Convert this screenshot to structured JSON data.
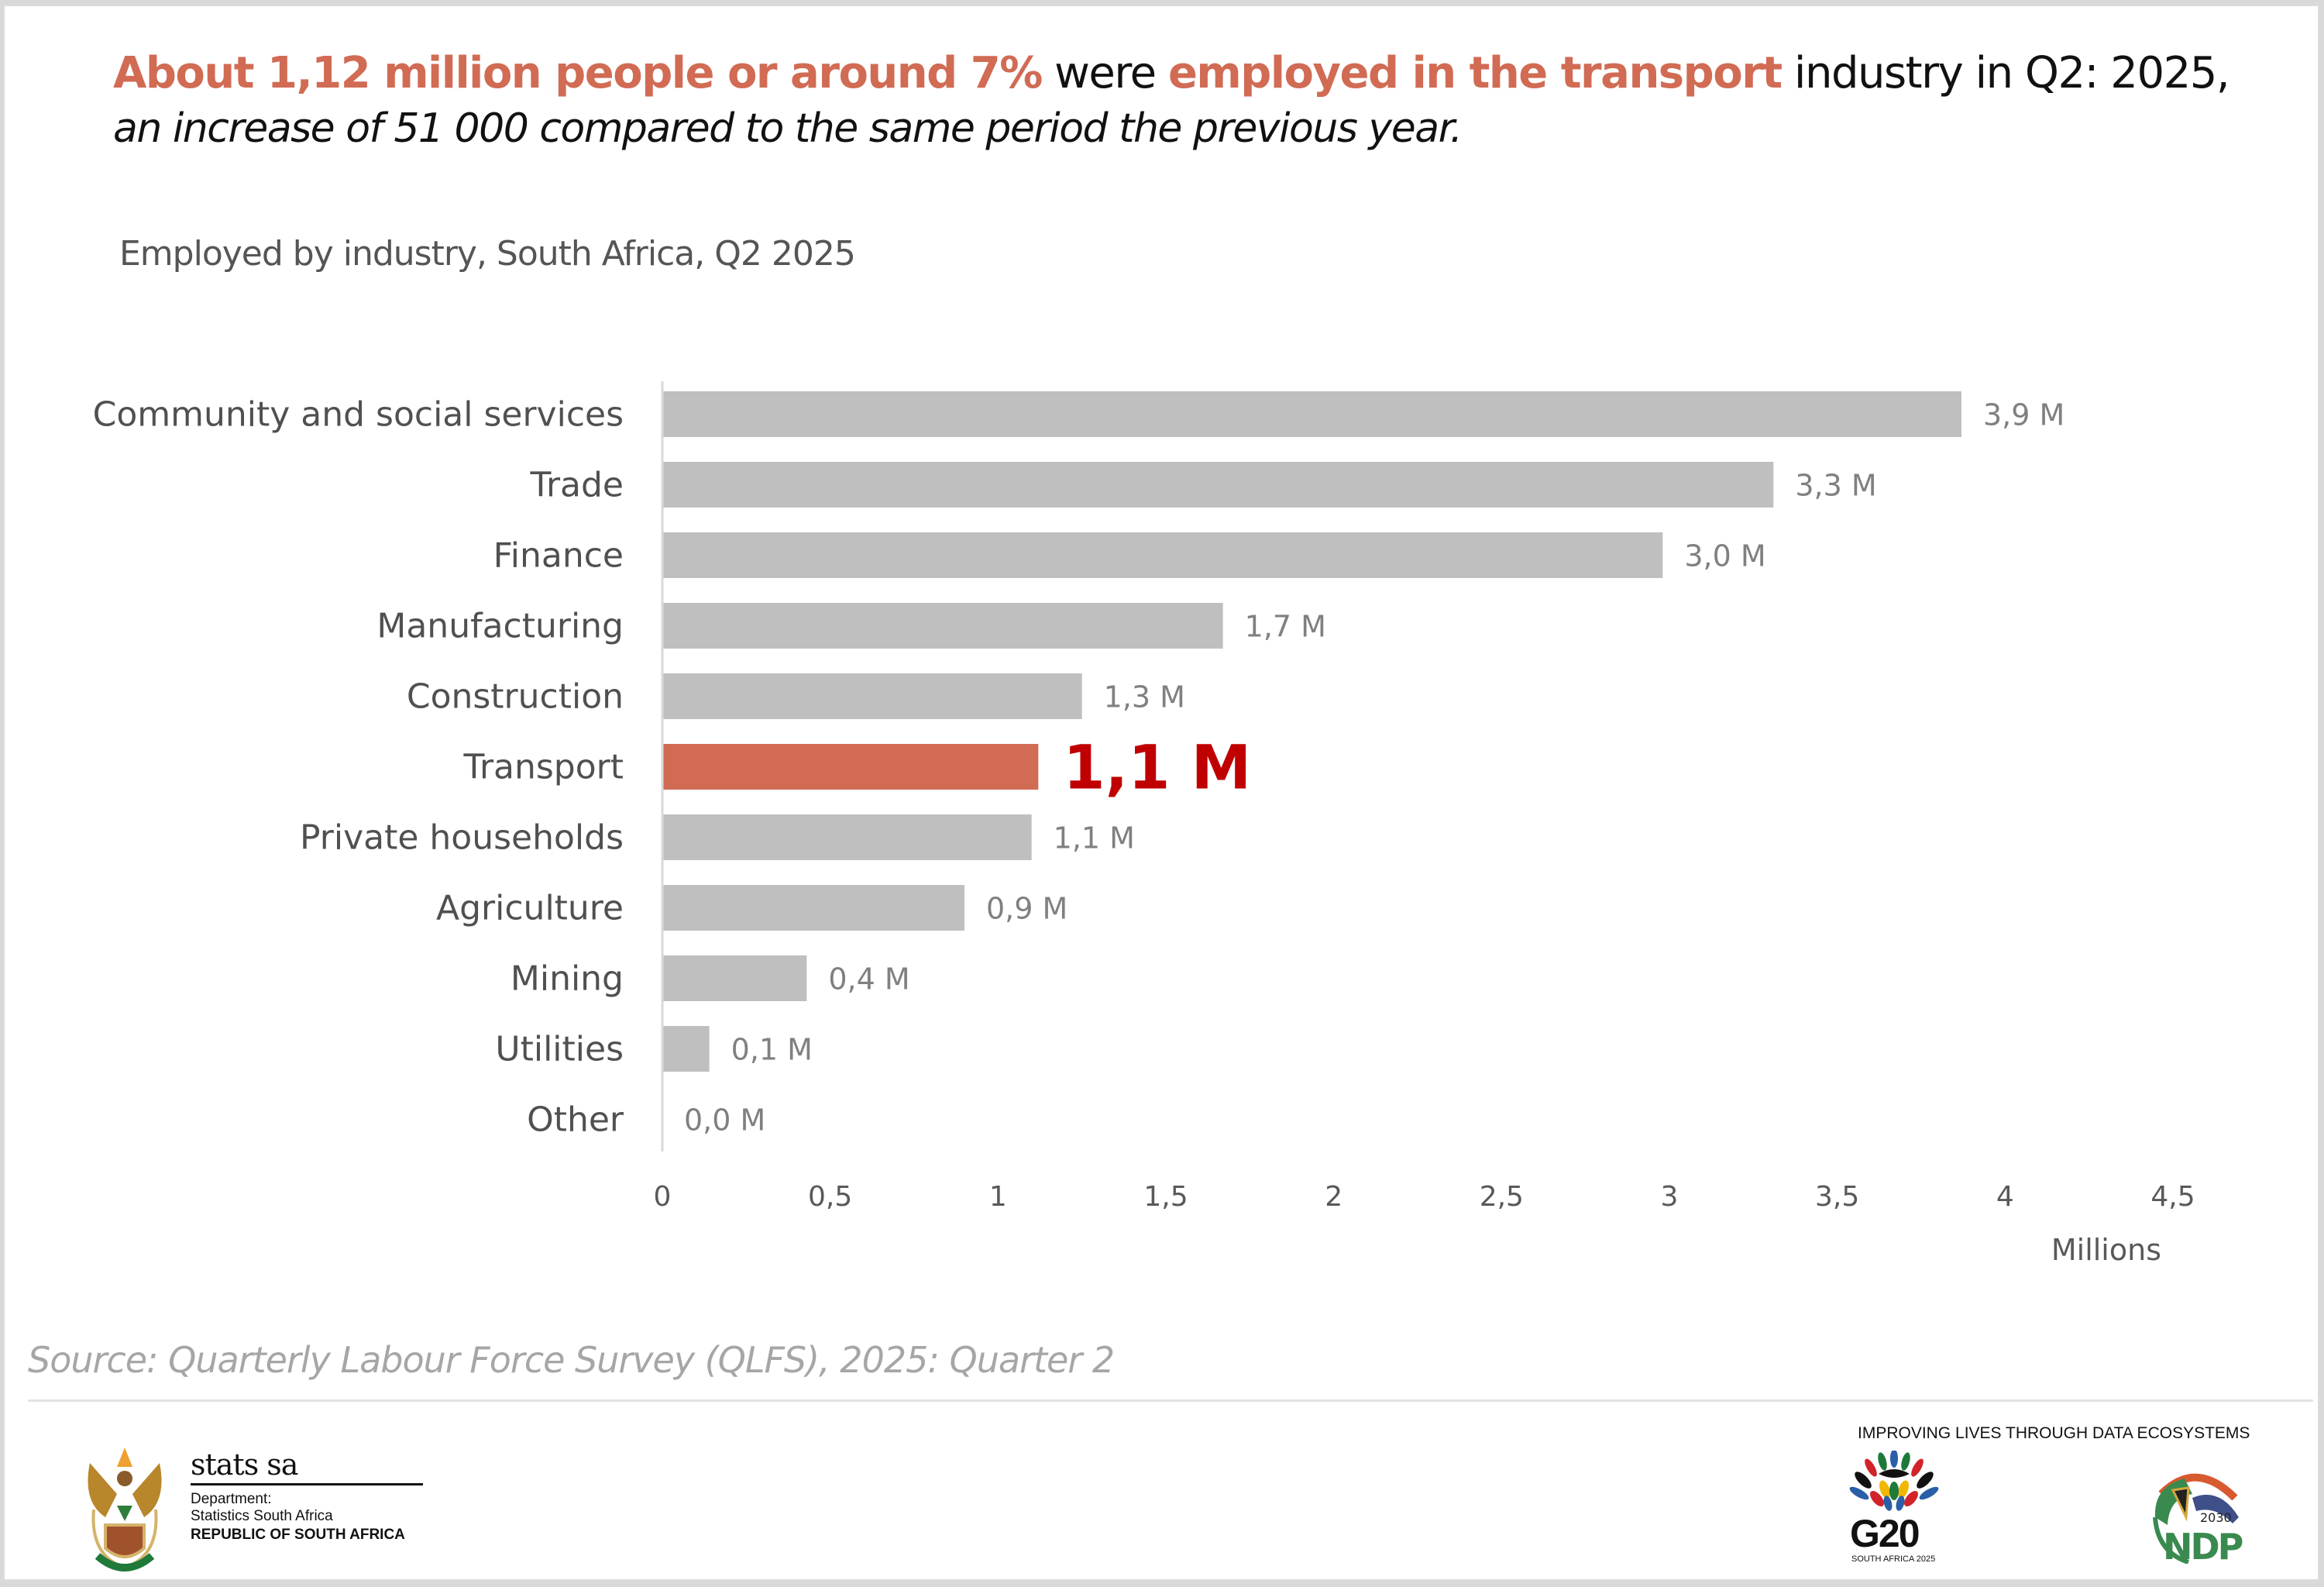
{
  "headline": {
    "part1_highlight": "About 1,12 million people  or around 7%",
    "part2": " were ",
    "part3_highlight": "employed in the transport",
    "part4": " industry in Q2: 2025,",
    "line2": "an increase of 51 000 compared to the same period the previous year."
  },
  "subtitle": "Employed by industry, South Africa, Q2 2025",
  "colors": {
    "accent": "#d16b54",
    "highlight_label": "#c00000",
    "bar_default": "#bfbfbf",
    "axis": "#d9d9d9"
  },
  "chart_data": {
    "type": "bar",
    "orientation": "horizontal",
    "title": "Employed by industry, South Africa, Q2 2025",
    "xlabel": "Millions",
    "ylabel": "",
    "categories": [
      "Community and social services",
      "Trade",
      "Finance",
      "Manufacturing",
      "Construction",
      "Transport",
      "Private households",
      "Agriculture",
      "Mining",
      "Utilities",
      "Other"
    ],
    "values": [
      3.87,
      3.31,
      2.98,
      1.67,
      1.25,
      1.12,
      1.1,
      0.9,
      0.43,
      0.14,
      0.0
    ],
    "data_labels": [
      "3,9 M",
      "3,3 M",
      "3,0 M",
      "1,7 M",
      "1,3 M",
      "1,1 M",
      "1,1 M",
      "0,9 M",
      "0,4 M",
      "0,1 M",
      "0,0 M"
    ],
    "highlight_category": "Transport",
    "xlim": [
      0,
      4.5
    ],
    "xticks": [
      0,
      0.5,
      1,
      1.5,
      2,
      2.5,
      3,
      3.5,
      4,
      4.5
    ],
    "xtick_labels": [
      "0",
      "0,5",
      "1",
      "1,5",
      "2",
      "2,5",
      "3",
      "3,5",
      "4",
      "4,5"
    ],
    "grid": false,
    "legend": "none"
  },
  "source": "Source: Quarterly Labour Force Survey (QLFS), 2025: Quarter 2",
  "footer": {
    "statssa": {
      "name": "stats sa",
      "dept_line1": "Department:",
      "dept_line2": "Statistics South Africa",
      "country": "REPUBLIC OF SOUTH AFRICA"
    },
    "tagline": "IMPROVING LIVES THROUGH DATA ECOSYSTEMS",
    "g20": {
      "text": "G20",
      "sub": "SOUTH AFRICA 2025"
    },
    "ndp": {
      "year": "2030",
      "text": "NDP"
    }
  }
}
